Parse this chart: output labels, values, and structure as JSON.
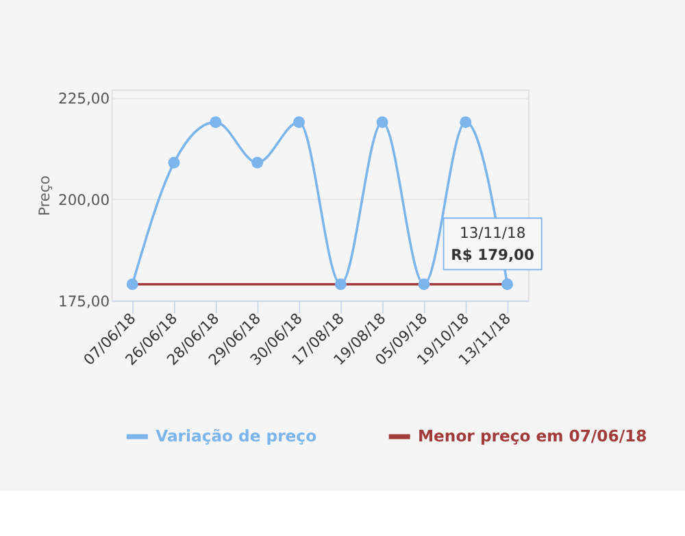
{
  "chart_data": {
    "type": "line",
    "ylabel": "Preço",
    "categories": [
      "07/06/18",
      "26/06/18",
      "28/06/18",
      "29/06/18",
      "30/06/18",
      "17/08/18",
      "19/08/18",
      "05/09/18",
      "19/10/18",
      "13/11/18"
    ],
    "series": [
      {
        "name": "Variação de preço",
        "color": "#7cb5ec",
        "marker": "circle",
        "values": [
          179,
          209,
          219,
          209,
          219,
          179,
          219,
          179,
          219,
          179
        ]
      },
      {
        "name": "Menor preço em 07/06/18",
        "color": "#a23b3b",
        "marker": "none",
        "values": [
          179,
          179,
          179,
          179,
          179,
          179,
          179,
          179,
          179,
          179
        ]
      }
    ],
    "ylim": [
      175,
      227
    ],
    "yticks": [
      {
        "value": 175,
        "label": "175,00"
      },
      {
        "value": 200,
        "label": "200,00"
      },
      {
        "value": 225,
        "label": "225,00"
      }
    ],
    "grid": "y",
    "legend": "bottom",
    "annotations": [
      {
        "text": "13/11/18\nR$ 179,00",
        "x": "13/11/18",
        "y": 179
      }
    ]
  }
}
